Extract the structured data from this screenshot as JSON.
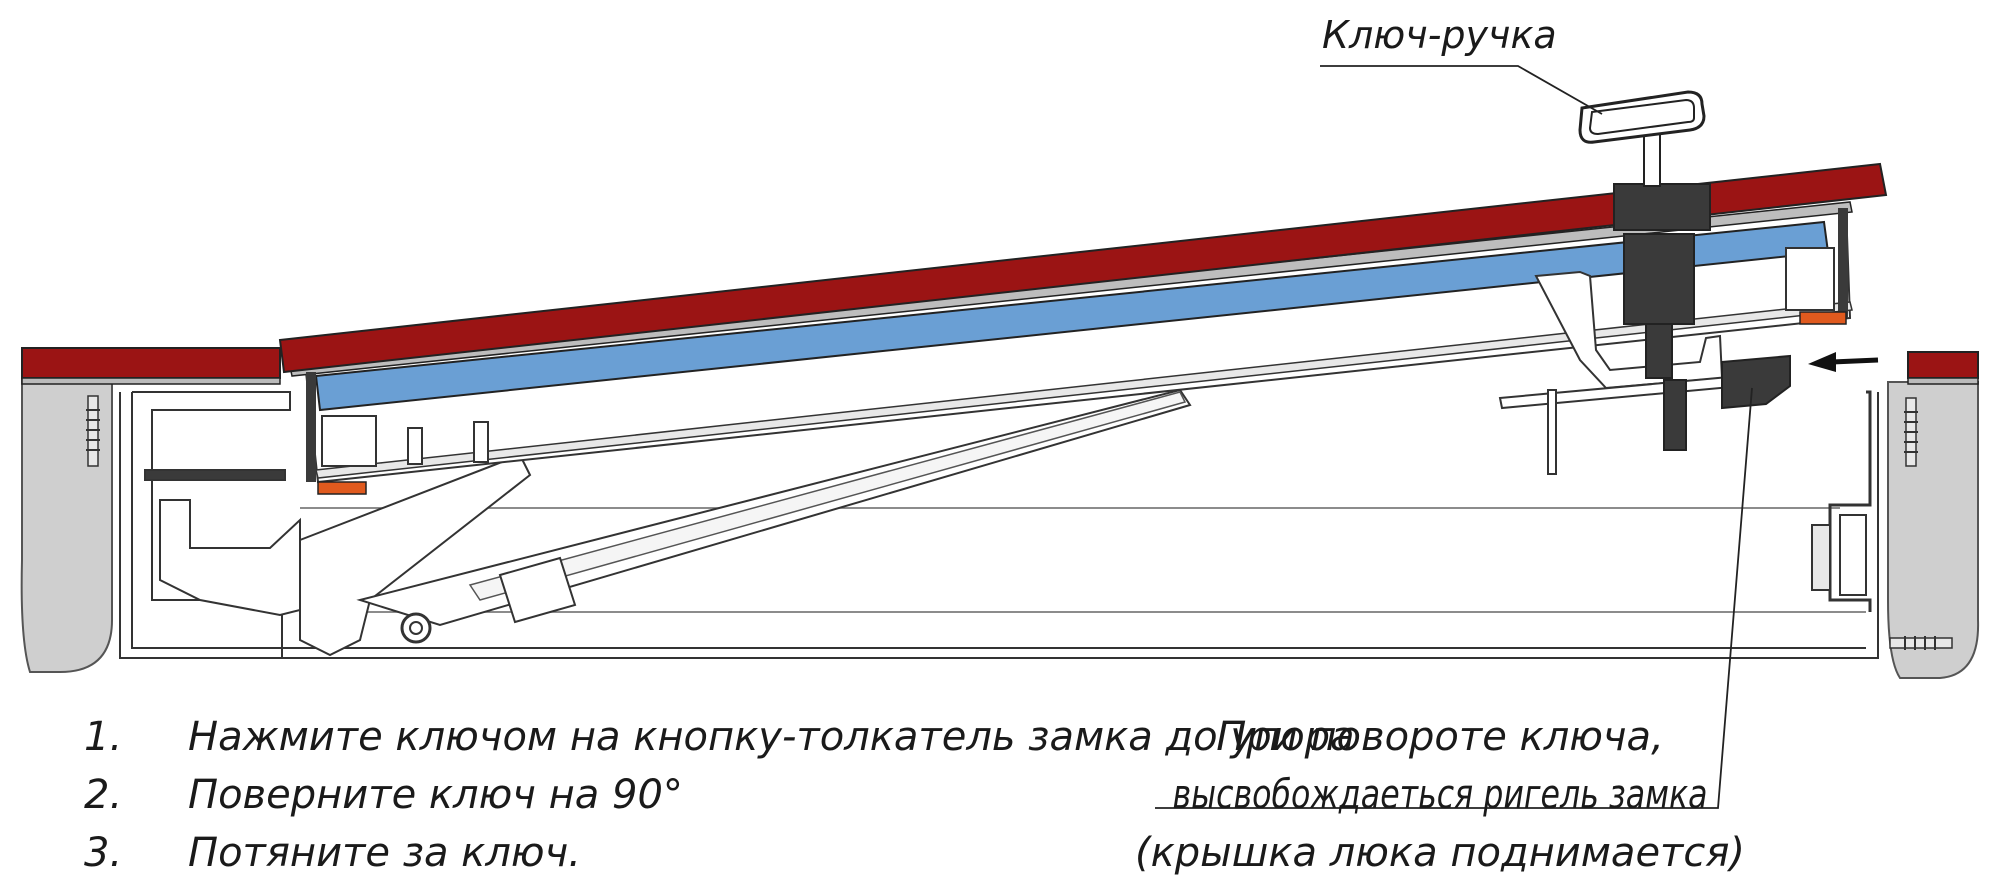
{
  "labels": {
    "key_handle": "Ключ-ручка"
  },
  "steps": [
    {
      "num": "1.",
      "text": "Нажмите ключом на кнопку-толкатель замка до упора"
    },
    {
      "num": "2.",
      "text": "Поверните ключ на 90°"
    },
    {
      "num": "3.",
      "text": "Потяните за ключ."
    }
  ],
  "note": {
    "line1": "При повороте ключа,",
    "line2": "высвобождаеться ригель замка",
    "line3": "(крышка люка поднимается)"
  },
  "colors": {
    "lid_red": "#9b1414",
    "panel_blue": "#6a9fd4",
    "seal_orange": "#e05a1e",
    "wall_grey": "#cfcfcf",
    "metal_dark": "#3a3a3a",
    "outline": "#222222"
  }
}
